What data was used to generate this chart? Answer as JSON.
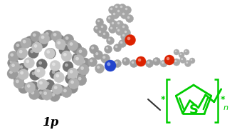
{
  "background_color": "#ffffff",
  "title_text": "1p",
  "title_fontsize": 12,
  "title_color": "#000000",
  "thiophene_color": "#00cc00",
  "line_color": "#333333",
  "gray_atom": "#888888",
  "gray_atom_light": "#bbbbbb",
  "blue_atom": "#2244cc",
  "red_atom": "#dd2200",
  "white_atom": "#dddddd",
  "fig_width": 3.4,
  "fig_height": 1.89,
  "dpi": 100
}
